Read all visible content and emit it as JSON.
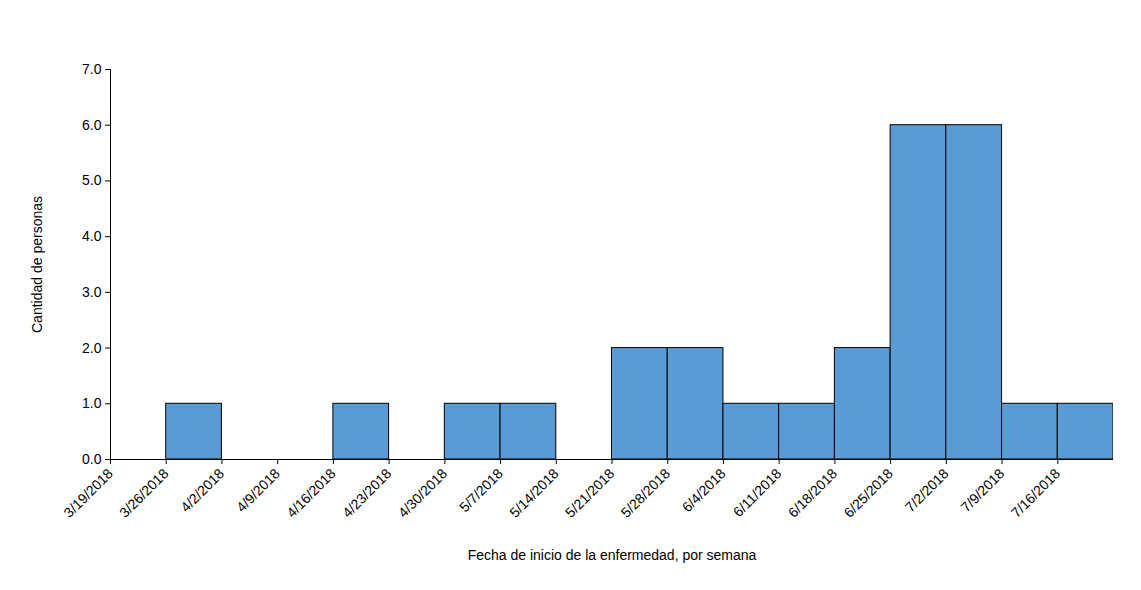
{
  "chart_data": {
    "type": "bar",
    "x_label": "Fecha de inicio de la enfermedad, por semana",
    "y_label": "Cantidad de personas",
    "categories": [
      "3/19/2018",
      "3/26/2018",
      "4/2/2018",
      "4/9/2018",
      "4/16/2018",
      "4/23/2018",
      "4/30/2018",
      "5/7/2018",
      "5/14/2018",
      "5/21/2018",
      "5/28/2018",
      "6/4/2018",
      "6/11/2018",
      "6/18/2018",
      "6/25/2018",
      "7/2/2018",
      "7/9/2018",
      "7/16/2018"
    ],
    "values": [
      0,
      1,
      0,
      0,
      1,
      0,
      1,
      1,
      0,
      2,
      2,
      1,
      1,
      2,
      6,
      6,
      1,
      1
    ],
    "color": "#5B9BD5",
    "ylim": [
      0,
      7
    ],
    "yticks": [
      0,
      1,
      2,
      3,
      4,
      5,
      6,
      7
    ],
    "grid": false
  }
}
